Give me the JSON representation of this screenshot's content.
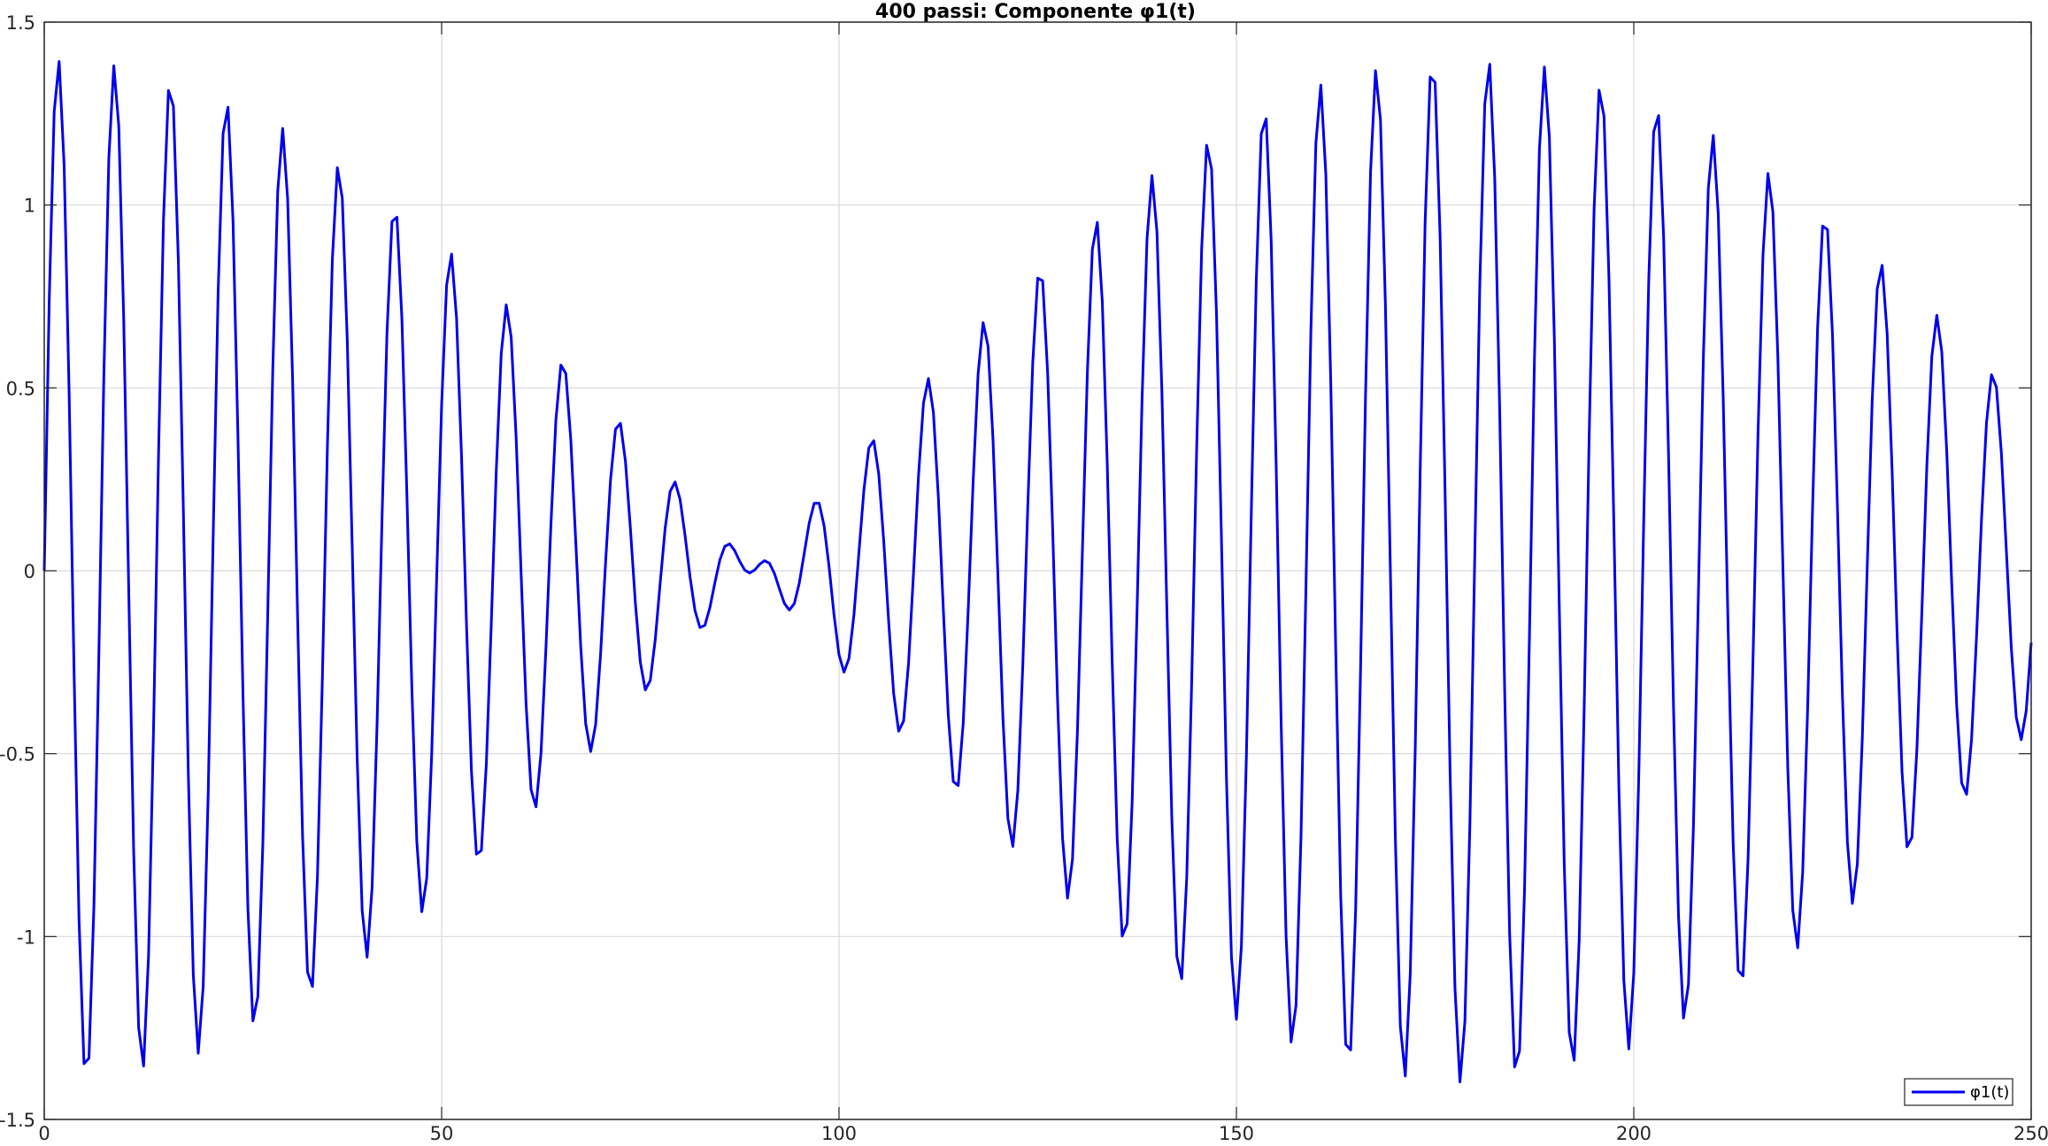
{
  "chart_data": {
    "type": "line",
    "title": "400 passi: Componente φ1(t)",
    "xlabel": "",
    "ylabel": "",
    "xlim": [
      0,
      250
    ],
    "ylim": [
      -1.5,
      1.5
    ],
    "xticks": [
      0,
      50,
      100,
      150,
      200,
      250
    ],
    "yticks": [
      -1.5,
      -1,
      -0.5,
      0,
      0.5,
      1,
      1.5
    ],
    "xtick_labels": [
      "0",
      "50",
      "100",
      "150",
      "200",
      "250"
    ],
    "ytick_labels": [
      "-1.5",
      "-1",
      "-0.5",
      "0",
      "0.5",
      "1",
      "1.5"
    ],
    "grid": true,
    "legend": {
      "placement": "bottom-right",
      "entries": [
        "φ1(t)"
      ]
    },
    "colors": {
      "line": "#0000ee",
      "axis": "#262626",
      "grid": "#d9d9d9"
    },
    "series": [
      {
        "name": "φ1(t)",
        "model": {
          "terms": [
            {
              "amplitude": 0.7,
              "frequency": 0.1389
            },
            {
              "amplitude": 0.7,
              "frequency": 0.1445
            }
          ]
        },
        "x": {
          "start": 0,
          "end": 250,
          "count": 401
        }
      }
    ]
  }
}
